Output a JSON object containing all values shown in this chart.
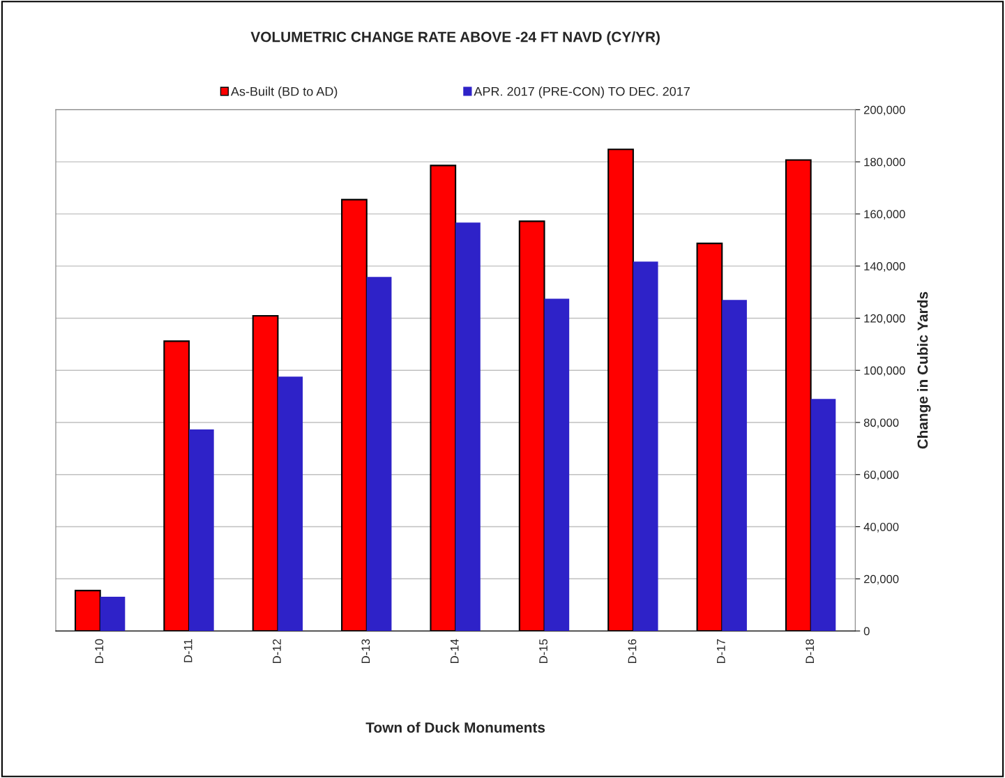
{
  "chart_data": {
    "type": "bar",
    "title": "VOLUMETRIC CHANGE RATE ABOVE -24 FT NAVD (CY/YR)",
    "xlabel": "Town of Duck Monuments",
    "y2label": "Change in Cubic Yards",
    "categories": [
      "D-10",
      "D-11",
      "D-12",
      "D-13",
      "D-14",
      "D-15",
      "D-16",
      "D-17",
      "D-18"
    ],
    "series": [
      {
        "name": "As-Built (BD to AD)",
        "color": "#ff0000",
        "axis": "y2",
        "values": [
          15500,
          111200,
          120900,
          165500,
          178600,
          157200,
          184800,
          148700,
          180700
        ]
      },
      {
        "name": "APR. 2017 (PRE-CON) TO DEC. 2017",
        "color": "#2e22c8",
        "axis": "y2",
        "values": [
          13100,
          77300,
          97600,
          135800,
          156700,
          127500,
          141700,
          127000,
          89000
        ]
      }
    ],
    "y2lim": [
      0,
      200000
    ],
    "y2ticks": [
      0,
      {
        "value": 20000,
        "label": "20,000"
      },
      {
        "value": 40000,
        "label": "40,000"
      },
      {
        "value": 60000,
        "label": "60,000"
      },
      {
        "value": 80000,
        "label": "80,000"
      },
      {
        "value": 100000,
        "label": "100,000"
      },
      {
        "value": 120000,
        "label": "120,000"
      },
      {
        "value": 140000,
        "label": "140,000"
      },
      {
        "value": 160000,
        "label": "160,000"
      },
      {
        "value": 180000,
        "label": "180,000"
      },
      {
        "value": 200000,
        "label": "200,000"
      }
    ],
    "grid": "y",
    "legend": "top"
  }
}
